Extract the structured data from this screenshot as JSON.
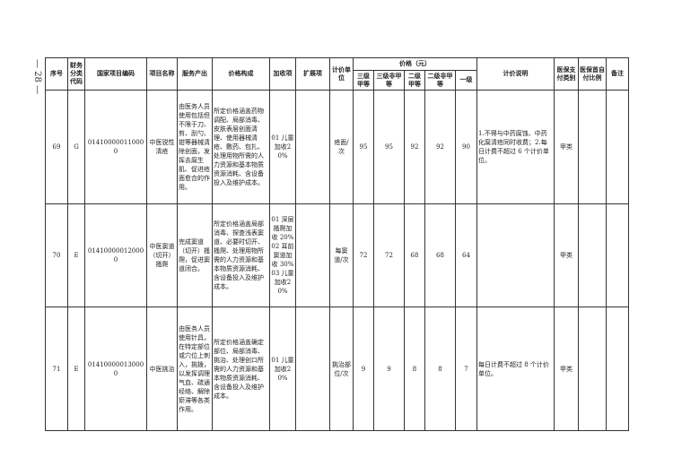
{
  "page_number": "— 28 —",
  "headers": {
    "seq": "序号",
    "fin_code": "财务分类代码",
    "nat_code": "国家项目编码",
    "name": "项目名称",
    "service": "服务产出",
    "price_comp": "价格构成",
    "surcharge": "加收项",
    "ext": "扩展项",
    "unit": "计价单位",
    "price": "价格（元）",
    "p1": "三级甲等",
    "p2": "三级非甲等",
    "p3": "二级甲等",
    "p4": "二级非甲等",
    "p5": "一级",
    "desc": "计价说明",
    "ins_cat": "医保支付类别",
    "ins_ratio": "医保首自付比例",
    "note": "备注"
  },
  "rows": [
    {
      "seq": "69",
      "fin_code": "G",
      "nat_code": "014100000110000",
      "name": "中医锐性清疮",
      "service": "由医务人员使用包括但不限于刀、剪、刮勺、钳等器械清除创面，发挥去腐生肌、促进疮面愈合的作用。",
      "price_comp": "所定价格涵盖药物调配、局部消毒、皮肤表层创面清理、使用器械清疮、敷药、包扎、处理用物所需的人力资源和基本物质资源消耗、含设备投入及维护成本。",
      "surcharge": "01 儿童加收20%",
      "ext": "",
      "unit": "疮面/次",
      "p1": "95",
      "p2": "95",
      "p3": "92",
      "p4": "92",
      "p5": "90",
      "desc": "1.不得与中药腐蚀、中药化腐清疮同时收费；2.每日计费不超过 6 个计价单位。",
      "ins_cat": "甲类",
      "ins_ratio": "",
      "note": ""
    },
    {
      "seq": "70",
      "fin_code": "E",
      "nat_code": "014100000120000",
      "name": "中医窦道（切开）搔爬",
      "service": "完成窦道（切开）搔爬，促进窦道闭合。",
      "price_comp": "所定价格涵盖局部消毒、探查浅表窦道、必要时切开、搔爬、处理用物所需的人力资源和基本物质资源消耗、含设备投入及维护成本。",
      "surcharge": "01 深层搔爬加收 20% 02 耳前窦道加收 30% 03 儿童加收20%",
      "ext": "",
      "unit": "每窦道/次",
      "p1": "72",
      "p2": "72",
      "p3": "68",
      "p4": "68",
      "p5": "64",
      "desc": "",
      "ins_cat": "甲类",
      "ins_ratio": "",
      "note": ""
    },
    {
      "seq": "71",
      "fin_code": "E",
      "nat_code": "014100000130000",
      "name": "中医挑治",
      "service": "由医务人员使用针具，在特定部位或穴位上刺入，挑拨，以发挥调理气血、疏通经络、解除瘀滞等各类作用。",
      "price_comp": "所定价格涵盖确定部位、局部消毒、挑治、处理创口所需的人力资源和基本物质资源消耗、含设备投入及维护成本。",
      "surcharge": "01 儿童加收20%",
      "ext": "",
      "unit": "挑治部位/次",
      "p1": "9",
      "p2": "9",
      "p3": "8",
      "p4": "8",
      "p5": "7",
      "desc": "每日计费不超过 8 个计价单位。",
      "ins_cat": "甲类",
      "ins_ratio": "",
      "note": ""
    }
  ]
}
